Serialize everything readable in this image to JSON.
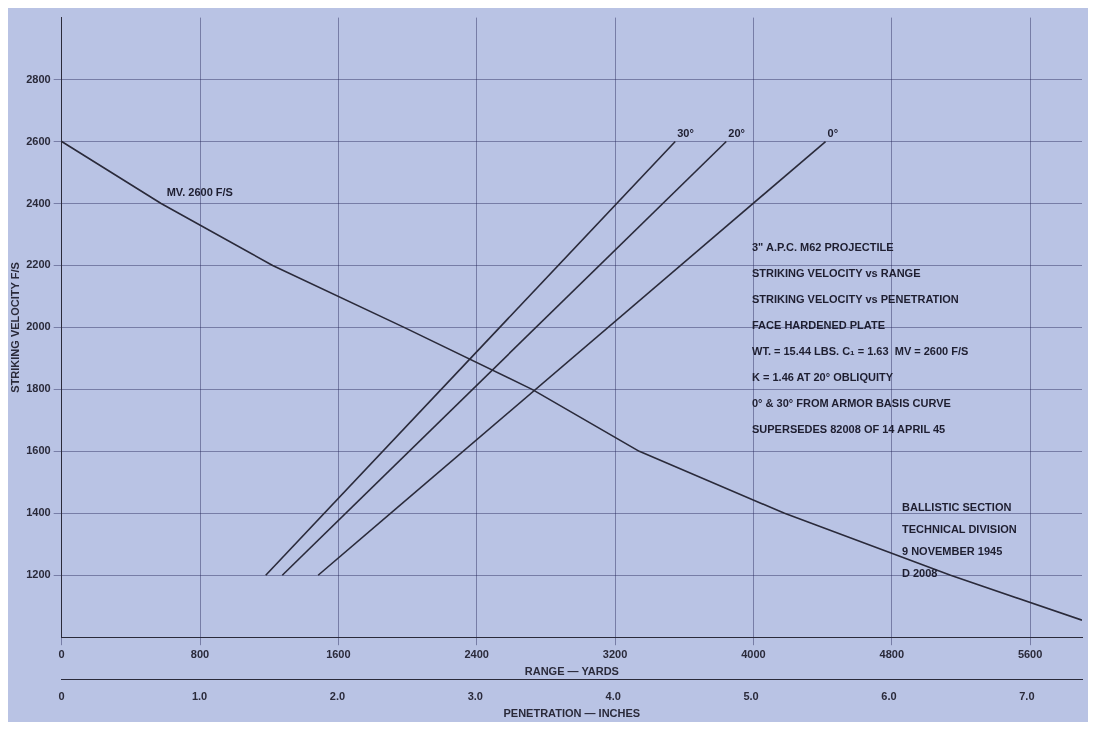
{
  "chart_data": {
    "type": "line",
    "ylabel": "STRIKING VELOCITY F/S",
    "xlabel": "RANGE — YARDS",
    "x2label": "PENETRATION — INCHES",
    "xlim": [
      0,
      5900
    ],
    "xticks": [
      0,
      800,
      1600,
      2400,
      3200,
      4000,
      4800,
      5600
    ],
    "x2lim": [
      0,
      7.4
    ],
    "x2ticks": [
      "0",
      {
        "value": 1,
        "label": "1.0"
      },
      {
        "value": 2,
        "label": "2.0"
      },
      {
        "value": 3,
        "label": "3.0"
      },
      {
        "value": 4,
        "label": "4.0"
      },
      {
        "value": 5,
        "label": "5.0"
      },
      {
        "value": 6,
        "label": "6.0"
      },
      {
        "value": 7,
        "label": "7.0"
      }
    ],
    "ylim": [
      1000,
      3000
    ],
    "yticks": [
      1200,
      1400,
      1600,
      1800,
      2000,
      2200,
      2400,
      2600,
      2800
    ],
    "grid": true,
    "legend": false,
    "marker": "none",
    "line_style": "solid",
    "series": [
      {
        "color": "#2a2a3a",
        "x": [
          0,
          575,
          1220,
          1980,
          2720,
          3340,
          4180,
          5140,
          5900
        ],
        "values": [
          2600,
          2400,
          2200,
          2000,
          1800,
          1600,
          1400,
          1200,
          1055
        ]
      },
      {
        "name": "30°",
        "axis": "x2",
        "color": "#2a2a3a",
        "x": [
          1.48,
          4.45
        ],
        "values": [
          1200,
          2600
        ]
      },
      {
        "name": "20°",
        "axis": "x2",
        "color": "#2a2a3a",
        "x": [
          1.6,
          4.82
        ],
        "values": [
          1200,
          2600
        ]
      },
      {
        "name": "0°",
        "axis": "x2",
        "color": "#2a2a3a",
        "x": [
          1.86,
          5.54
        ],
        "values": [
          1200,
          2600
        ]
      }
    ],
    "annotations": [
      "MV. 2600 F/S",
      "3\" A.P.C. M62 PROJECTILE",
      "STRIKING VELOCITY vs RANGE",
      "STRIKING VELOCITY vs PENETRATION",
      "FACE HARDENED PLATE",
      "WT. = 15.44 LBS. C₁ = 1.63  MV = 2600 F/S",
      "K = 1.46 AT 20° OBLIQUITY",
      "0° & 30° FROM ARMOR BASIS CURVE",
      "SUPERSEDES 82008 OF 14 APRIL 45",
      "BALLISTIC SECTION",
      "TECHNICAL DIVISION",
      "9 NOVEMBER 1945",
      "D 2008"
    ]
  }
}
